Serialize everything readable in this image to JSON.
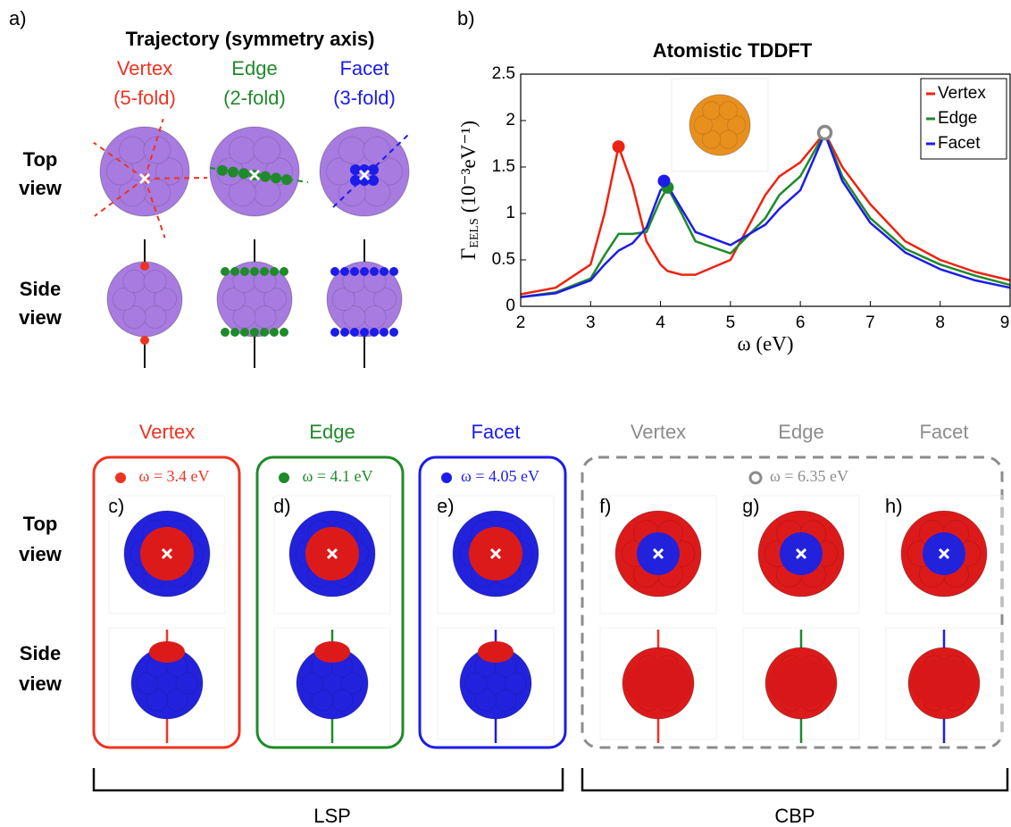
{
  "panel_a": {
    "label": "a)",
    "title": "Trajectory (symmetry axis)",
    "columns": [
      {
        "name": "Vertex",
        "axis": "(5-fold)",
        "color": "#ee3322"
      },
      {
        "name": "Edge",
        "axis": "(2-fold)",
        "color": "#1f8a2a"
      },
      {
        "name": "Facet",
        "axis": "(3-fold)",
        "color": "#1c1ce8"
      }
    ],
    "rows": [
      {
        "line1": "Top",
        "line2": "view"
      },
      {
        "line1": "Side",
        "line2": "view"
      }
    ]
  },
  "chart_data": {
    "type": "line",
    "panel_label": "b)",
    "title": "Atomistic TDDFT",
    "x_label": "ω (eV)",
    "y_label_symbol": "Γ",
    "y_label_sub": "EELS",
    "y_label_unit": "(10⁻³eV⁻¹)",
    "x": [
      2,
      2.5,
      3,
      3.2,
      3.4,
      3.6,
      3.8,
      4,
      4.1,
      4.3,
      4.5,
      5,
      5.5,
      5.7,
      6,
      6.35,
      6.6,
      7,
      7.5,
      8,
      8.5,
      9
    ],
    "series": [
      {
        "name": "Vertex",
        "color": "#ee2211",
        "values": [
          0.13,
          0.2,
          0.45,
          1.0,
          1.72,
          1.3,
          0.7,
          0.45,
          0.38,
          0.34,
          0.34,
          0.5,
          1.2,
          1.4,
          1.55,
          1.87,
          1.5,
          1.1,
          0.7,
          0.5,
          0.37,
          0.28
        ]
      },
      {
        "name": "Edge",
        "color": "#1f8a2a",
        "values": [
          0.1,
          0.15,
          0.3,
          0.55,
          0.78,
          0.78,
          0.8,
          1.15,
          1.28,
          1.0,
          0.7,
          0.57,
          0.95,
          1.2,
          1.4,
          1.87,
          1.4,
          0.95,
          0.62,
          0.45,
          0.33,
          0.23
        ]
      },
      {
        "name": "Facet",
        "color": "#1c1ce8",
        "values": [
          0.1,
          0.14,
          0.28,
          0.45,
          0.6,
          0.68,
          0.85,
          1.25,
          1.3,
          1.05,
          0.8,
          0.66,
          0.88,
          1.05,
          1.25,
          1.86,
          1.35,
          0.9,
          0.58,
          0.4,
          0.28,
          0.2
        ]
      }
    ],
    "markers": [
      {
        "x": 3.4,
        "y": 1.72,
        "color": "#ee2211",
        "hollow": false
      },
      {
        "x": 4.1,
        "y": 1.28,
        "color": "#1f8a2a",
        "hollow": false
      },
      {
        "x": 4.05,
        "y": 1.35,
        "color": "#1c1ce8",
        "hollow": false
      },
      {
        "x": 6.35,
        "y": 1.87,
        "color": "#888888",
        "hollow": true
      }
    ],
    "xlim": [
      2,
      9
    ],
    "ylim": [
      0,
      2.5
    ],
    "xticks": [
      2,
      3,
      4,
      5,
      6,
      7,
      8,
      9
    ],
    "yticks": [
      0,
      0.5,
      1,
      1.5,
      2,
      2.5
    ],
    "legend": "upper right"
  },
  "panel_cf": {
    "columns": [
      {
        "name": "Vertex",
        "color": "#ee3322",
        "panel": "c)"
      },
      {
        "name": "Edge",
        "color": "#1f8a2a",
        "panel": "d)"
      },
      {
        "name": "Facet",
        "color": "#1c1ce8",
        "panel": "e)"
      },
      {
        "name": "Vertex",
        "color": "#8c8c8c",
        "panel": "f)"
      },
      {
        "name": "Edge",
        "color": "#8c8c8c",
        "panel": "g)"
      },
      {
        "name": "Facet",
        "color": "#8c8c8c",
        "panel": "h)"
      }
    ],
    "frequencies": [
      {
        "label": "ω = 3.4 eV",
        "color": "#ee3322",
        "hollow": false
      },
      {
        "label": "ω = 4.1 eV",
        "color": "#1f8a2a",
        "hollow": false
      },
      {
        "label": "ω = 4.05 eV",
        "color": "#1c1ce8",
        "hollow": false
      },
      {
        "label": "ω = 6.35 eV",
        "color": "#8c8c8c",
        "hollow": true
      }
    ],
    "rows": [
      {
        "line1": "Top",
        "line2": "view"
      },
      {
        "line1": "Side",
        "line2": "view"
      }
    ],
    "groups": [
      {
        "name": "LSP"
      },
      {
        "name": "CBP"
      }
    ]
  }
}
